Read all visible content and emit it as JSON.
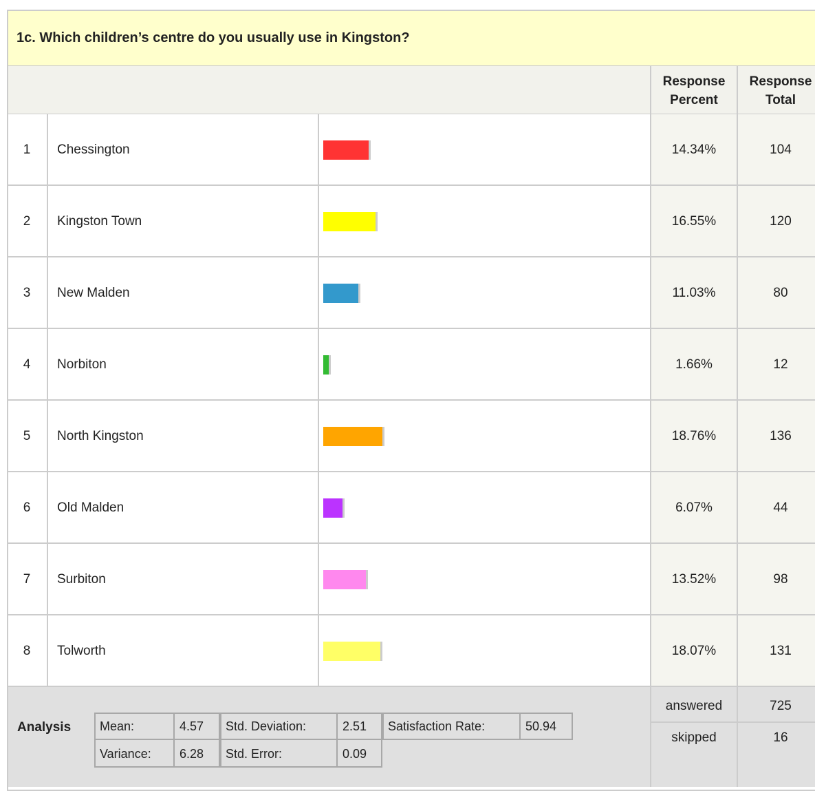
{
  "title": "1c. Which children’s centre do you usually use in Kingston?",
  "header": {
    "percent": "Response Percent",
    "total": "Response Total"
  },
  "rows": [
    {
      "number": 1,
      "label": "Chessington",
      "percent": 14.34,
      "percent_label": "14.34%",
      "total": 104,
      "color": "#ff3333"
    },
    {
      "number": 2,
      "label": "Kingston Town",
      "percent": 16.55,
      "percent_label": "16.55%",
      "total": 120,
      "color": "#ffff00"
    },
    {
      "number": 3,
      "label": "New Malden",
      "percent": 11.03,
      "percent_label": "11.03%",
      "total": 80,
      "color": "#3399cc"
    },
    {
      "number": 4,
      "label": "Norbiton",
      "percent": 1.66,
      "percent_label": "1.66%",
      "total": 12,
      "color": "#33bb33"
    },
    {
      "number": 5,
      "label": "North Kingston",
      "percent": 18.76,
      "percent_label": "18.76%",
      "total": 136,
      "color": "#ffa500"
    },
    {
      "number": 6,
      "label": "Old Malden",
      "percent": 6.07,
      "percent_label": "6.07%",
      "total": 44,
      "color": "#bb33ff"
    },
    {
      "number": 7,
      "label": "Surbiton",
      "percent": 13.52,
      "percent_label": "13.52%",
      "total": 98,
      "color": "#ff88ee"
    },
    {
      "number": 8,
      "label": "Tolworth",
      "percent": 18.07,
      "percent_label": "18.07%",
      "total": 131,
      "color": "#ffff66"
    }
  ],
  "analysis": {
    "title": "Analysis",
    "stats": [
      [
        {
          "label": "Mean:",
          "value": 4.57
        },
        {
          "label": "Std. Deviation:",
          "value": 2.51
        },
        {
          "label": "Satisfaction Rate:",
          "value": 50.94
        }
      ],
      [
        {
          "label": "Variance:",
          "value": 6.28
        },
        {
          "label": "Std. Error:",
          "value": 0.09
        }
      ]
    ]
  },
  "summary": [
    {
      "label": "answered",
      "value": 725
    },
    {
      "label": "skipped",
      "value": 16
    }
  ]
}
